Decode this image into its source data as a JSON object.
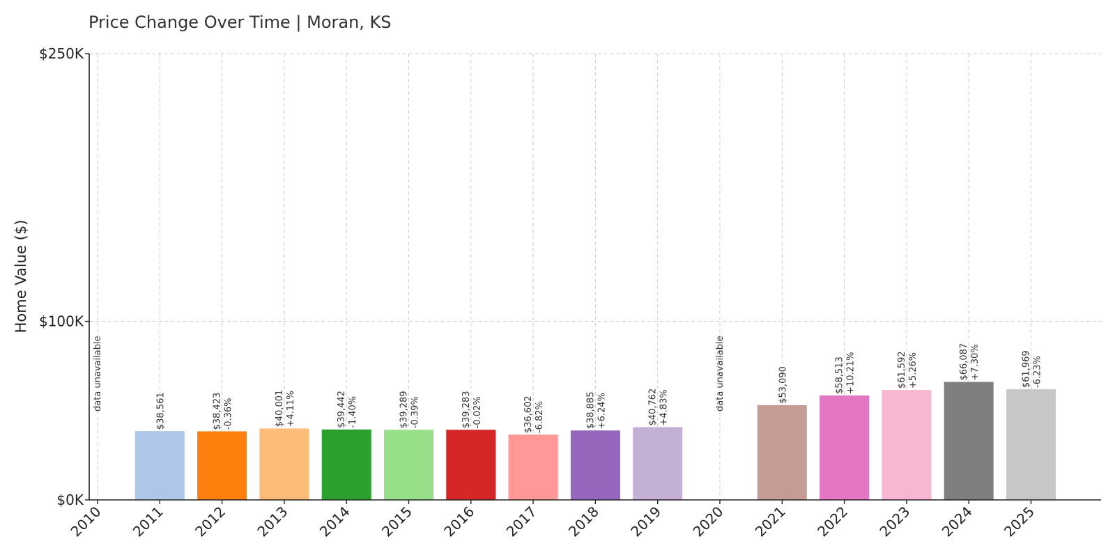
{
  "chart_data": {
    "type": "bar",
    "title": "Price Change Over Time | Moran, KS",
    "ylabel": "Home Value ($)",
    "xlabel": "",
    "ylim": [
      0,
      250000
    ],
    "y_ticks": [
      {
        "value": 0,
        "label": "$0K"
      },
      {
        "value": 100000,
        "label": "$100K"
      },
      {
        "value": 250000,
        "label": "$250K"
      }
    ],
    "grid": true,
    "categories": [
      "2010",
      "2011",
      "2012",
      "2013",
      "2014",
      "2015",
      "2016",
      "2017",
      "2018",
      "2019",
      "2020",
      "2021",
      "2022",
      "2023",
      "2024",
      "2025"
    ],
    "values": [
      null,
      38561,
      38423,
      40001,
      39442,
      39289,
      39283,
      36602,
      38885,
      40762,
      null,
      53090,
      58513,
      61592,
      66087,
      61969
    ],
    "value_labels": [
      "",
      "$38,561",
      "$38,423",
      "$40,001",
      "$39,442",
      "$39,289",
      "$39,283",
      "$36,602",
      "$38,885",
      "$40,762",
      "",
      "$53,090",
      "$58,513",
      "$61,592",
      "$66,087",
      "$61,969"
    ],
    "change_labels": [
      "",
      "",
      "-0.36%",
      "+4.11%",
      "-1.40%",
      "-0.39%",
      "-0.02%",
      "-6.82%",
      "+6.24%",
      "+4.83%",
      "",
      "",
      "+10.21%",
      "+5.26%",
      "+7.30%",
      "-6.23%"
    ],
    "missing_label": "data unavailable",
    "colors": [
      "#aec7e8",
      "#aec7e8",
      "#ff7f0e",
      "#ffbb78",
      "#2ca02c",
      "#98df8a",
      "#d62728",
      "#ff9896",
      "#9467bd",
      "#c5b0d5",
      "#8c564b",
      "#c49c94",
      "#e377c2",
      "#f7b6d2",
      "#7f7f7f",
      "#c7c7c7"
    ]
  }
}
